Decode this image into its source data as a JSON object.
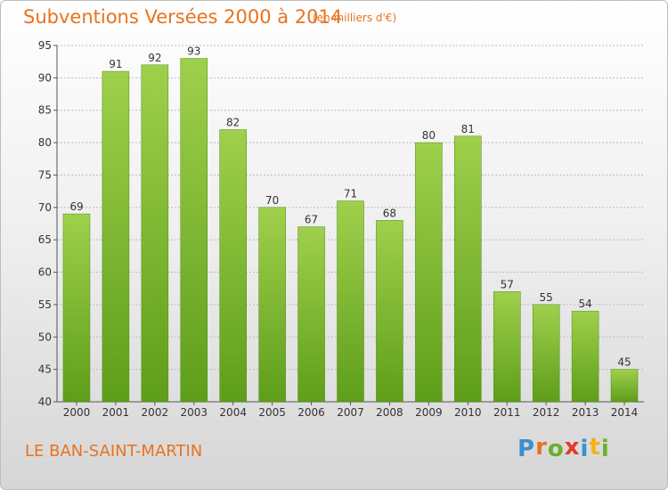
{
  "header": {
    "title": "Subventions Versées 2000 à 2014",
    "unit": "(en milliers d'€)"
  },
  "footer": {
    "commune": "LE BAN-SAINT-MARTIN",
    "logo_letters": [
      "P",
      "r",
      "o",
      "x",
      "i",
      "t",
      "i"
    ],
    "logo_colors": [
      "#3b8fd1",
      "#e8731e",
      "#6dae2a",
      "#e23b2d",
      "#3b8fd1",
      "#f2b315",
      "#6dae2a"
    ]
  },
  "colors": {
    "bar_top": "#9fd04c",
    "bar_bottom": "#5e9e1a",
    "accent": "#e8731e"
  },
  "chart_data": {
    "type": "bar",
    "categories": [
      "2000",
      "2001",
      "2002",
      "2003",
      "2004",
      "2005",
      "2006",
      "2007",
      "2008",
      "2009",
      "2010",
      "2011",
      "2012",
      "2013",
      "2014"
    ],
    "values": [
      69,
      91,
      92,
      93,
      82,
      70,
      67,
      71,
      68,
      80,
      81,
      57,
      55,
      54,
      45
    ],
    "yticks": [
      40,
      45,
      50,
      55,
      60,
      65,
      70,
      75,
      80,
      85,
      90,
      95
    ],
    "ylim": [
      40,
      95
    ],
    "grid": true,
    "title": "Subventions Versées 2000 à 2014"
  }
}
